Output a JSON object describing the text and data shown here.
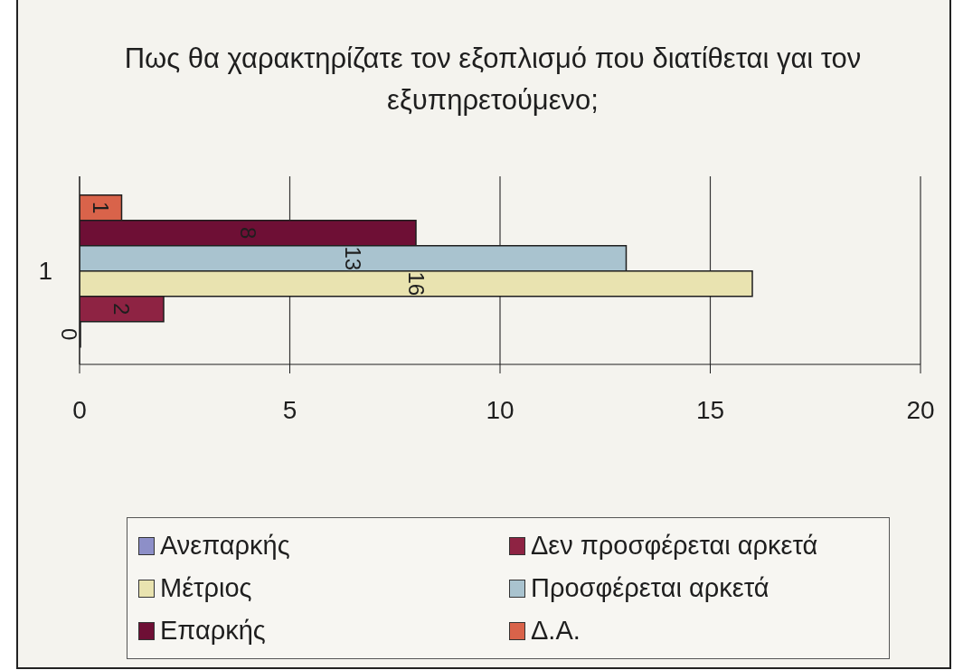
{
  "chart_data": {
    "type": "bar",
    "orientation": "horizontal",
    "title": "Πως θα χαρακτηρίζατε τον εξοπλισμό που διατίθεται γαι τον εξυπηρετούμενο;",
    "categories": [
      "1"
    ],
    "series": [
      {
        "name": "Ανεπαρκής",
        "color": "#8d8fc8",
        "values": [
          0
        ]
      },
      {
        "name": "Δεν προσφέρεται αρκετά",
        "color": "#8e2343",
        "values": [
          2
        ]
      },
      {
        "name": "Μέτριος",
        "color": "#e9e3b0",
        "values": [
          16
        ]
      },
      {
        "name": "Προσφέρεται αρκετά",
        "color": "#a9c3cf",
        "values": [
          13
        ]
      },
      {
        "name": "Επαρκής",
        "color": "#6e0f35",
        "values": [
          8
        ]
      },
      {
        "name": "Δ.Α.",
        "color": "#d9634a",
        "values": [
          1
        ]
      }
    ],
    "xlim": [
      0,
      20
    ],
    "xticks": [
      0,
      5,
      10,
      15,
      20
    ],
    "grid": "x",
    "legend": "bottom",
    "data_labels": true
  }
}
